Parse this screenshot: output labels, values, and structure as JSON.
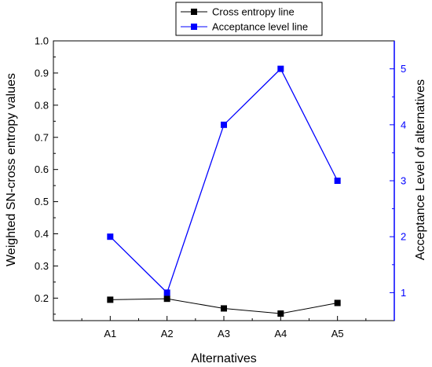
{
  "chart_data": {
    "type": "line",
    "categories": [
      "A1",
      "A2",
      "A3",
      "A4",
      "A5"
    ],
    "xlabel": "Alternatives",
    "ylabel_left": "Weighted SN-cross entropy values",
    "ylabel_right": "Acceptance Level of alternatives",
    "ylim_left": [
      0.13,
      1.0
    ],
    "yticks_left": [
      "0.2",
      "0.3",
      "0.4",
      "0.5",
      "0.6",
      "0.7",
      "0.8",
      "0.9",
      "1.0"
    ],
    "ylim_right": [
      0.5,
      5.5
    ],
    "yticks_right": [
      "1",
      "2",
      "3",
      "4",
      "5"
    ],
    "grid": false,
    "legend_position": "top-center",
    "series": [
      {
        "name": "Cross entropy line",
        "axis": "left",
        "color": "#000000",
        "values": [
          0.195,
          0.198,
          0.168,
          0.152,
          0.185
        ]
      },
      {
        "name": "Acceptance level line",
        "axis": "right",
        "color": "#0000ff",
        "values": [
          2,
          1,
          4,
          5,
          3
        ]
      }
    ]
  }
}
